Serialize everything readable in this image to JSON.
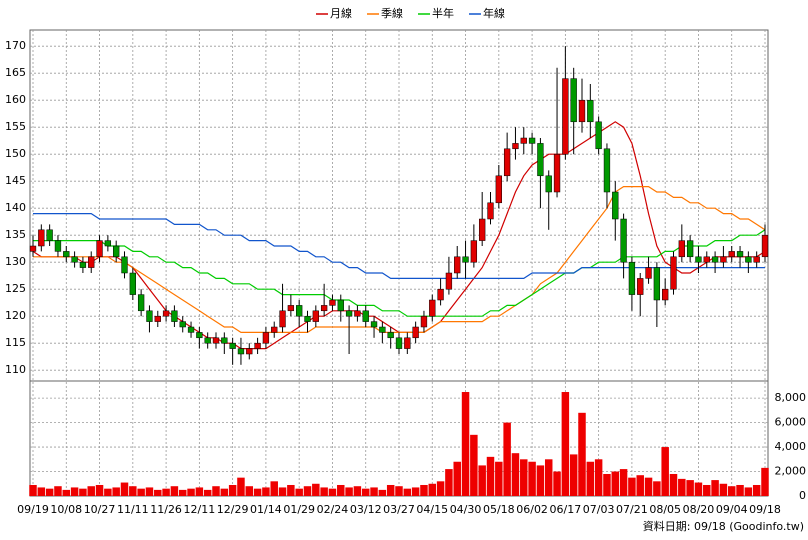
{
  "chart_data": {
    "type": "candlestick",
    "categories": [
      "09/19",
      null,
      null,
      null,
      "10/08",
      null,
      null,
      null,
      "10/27",
      null,
      null,
      null,
      "11/11",
      null,
      null,
      null,
      "11/26",
      null,
      null,
      null,
      "12/11",
      null,
      null,
      null,
      "12/29",
      null,
      null,
      null,
      "01/14",
      null,
      null,
      null,
      "01/29",
      null,
      null,
      null,
      "02/24",
      null,
      null,
      null,
      "03/12",
      null,
      null,
      null,
      "03/27",
      null,
      null,
      null,
      "04/15",
      null,
      null,
      null,
      "04/30",
      null,
      null,
      null,
      "05/18",
      null,
      null,
      null,
      "06/02",
      null,
      null,
      null,
      "06/17",
      null,
      null,
      null,
      "07/03",
      null,
      null,
      null,
      "07/21",
      null,
      null,
      null,
      "08/05",
      null,
      null,
      null,
      "08/20",
      null,
      null,
      null,
      "09/04",
      null,
      null,
      null,
      "09/18"
    ],
    "open": [
      132,
      133,
      136,
      134,
      132,
      131,
      130,
      129,
      131,
      134,
      133,
      131,
      128,
      124,
      121,
      119,
      120,
      121,
      119,
      118,
      117,
      116,
      115,
      116,
      115,
      114,
      113,
      114,
      115,
      117,
      118,
      121,
      122,
      120,
      119,
      121,
      122,
      123,
      121,
      120,
      121,
      119,
      118,
      117,
      116,
      114,
      116,
      118,
      120,
      123,
      125,
      128,
      131,
      130,
      134,
      138,
      141,
      146,
      151,
      152,
      153,
      152,
      146,
      143,
      150,
      164,
      156,
      160,
      156,
      151,
      143,
      138,
      130,
      124,
      127,
      129,
      123,
      125,
      131,
      134,
      131,
      130,
      131,
      130,
      131,
      132,
      131,
      130,
      131
    ],
    "high": [
      135,
      137,
      137,
      135,
      133,
      132,
      131,
      132,
      135,
      135,
      134,
      132,
      129,
      125,
      122,
      121,
      122,
      122,
      120,
      119,
      118,
      117,
      117,
      117,
      116,
      116,
      115,
      116,
      118,
      119,
      126,
      124,
      123,
      121,
      122,
      126,
      124,
      124,
      122,
      122,
      122,
      120,
      119,
      118,
      117,
      117,
      119,
      121,
      124,
      127,
      131,
      133,
      134,
      137,
      143,
      143,
      148,
      154,
      155,
      155,
      154,
      153,
      147,
      166,
      170,
      166,
      164,
      163,
      157,
      152,
      145,
      139,
      131,
      128,
      131,
      130,
      127,
      132,
      137,
      135,
      133,
      132,
      132,
      133,
      133,
      133,
      132,
      132,
      137
    ],
    "low": [
      131,
      132,
      133,
      131,
      130,
      129,
      128,
      128,
      130,
      132,
      130,
      127,
      123,
      120,
      117,
      118,
      119,
      118,
      117,
      116,
      114,
      114,
      114,
      113,
      111,
      111,
      112,
      113,
      114,
      116,
      117,
      120,
      118,
      117,
      118,
      120,
      121,
      119,
      113,
      119,
      118,
      116,
      115,
      114,
      113,
      113,
      115,
      117,
      119,
      122,
      124,
      127,
      127,
      129,
      133,
      137,
      140,
      145,
      149,
      150,
      150,
      140,
      136,
      142,
      149,
      150,
      154,
      153,
      150,
      140,
      134,
      127,
      121,
      120,
      126,
      118,
      122,
      124,
      130,
      130,
      128,
      129,
      128,
      129,
      130,
      129,
      128,
      129,
      130
    ],
    "close": [
      133,
      136,
      134,
      132,
      131,
      130,
      129,
      131,
      134,
      133,
      131,
      128,
      124,
      121,
      119,
      120,
      121,
      119,
      118,
      117,
      116,
      115,
      116,
      115,
      114,
      113,
      114,
      115,
      117,
      118,
      121,
      122,
      120,
      119,
      121,
      122,
      123,
      121,
      120,
      121,
      119,
      118,
      117,
      116,
      114,
      116,
      118,
      120,
      123,
      125,
      128,
      131,
      130,
      134,
      138,
      141,
      146,
      151,
      152,
      153,
      152,
      146,
      143,
      150,
      164,
      156,
      160,
      156,
      151,
      143,
      138,
      130,
      124,
      127,
      129,
      123,
      125,
      131,
      134,
      131,
      130,
      131,
      130,
      131,
      132,
      131,
      130,
      131,
      135
    ],
    "up_color": "#e00000",
    "down_color": "#009900",
    "ylim": [
      108,
      173
    ],
    "yticks": [
      110,
      115,
      120,
      125,
      130,
      135,
      140,
      145,
      150,
      155,
      160,
      165,
      170
    ],
    "grid": true,
    "series": [
      {
        "name": "月線",
        "color": "#d00000",
        "values": [
          132,
          131,
          131,
          131,
          131,
          131,
          130,
          130,
          131,
          131,
          131,
          130,
          129,
          127,
          125,
          123,
          121,
          120,
          119,
          118,
          117,
          116,
          116,
          115,
          115,
          114,
          114,
          114,
          114,
          115,
          116,
          117,
          118,
          119,
          120,
          120,
          121,
          121,
          121,
          121,
          120,
          120,
          119,
          118,
          117,
          117,
          117,
          117,
          118,
          119,
          121,
          123,
          125,
          127,
          129,
          132,
          135,
          139,
          143,
          146,
          148,
          149,
          150,
          150,
          150,
          151,
          152,
          153,
          154,
          155,
          156,
          155,
          152,
          146,
          139,
          133,
          130,
          129,
          128,
          128,
          129,
          130,
          131,
          131,
          131,
          131,
          131,
          131,
          132
        ]
      },
      {
        "name": "季線",
        "color": "#ff7700",
        "values": [
          131,
          131,
          131,
          131,
          131,
          131,
          131,
          131,
          131,
          131,
          130,
          130,
          129,
          128,
          127,
          126,
          125,
          124,
          123,
          122,
          121,
          120,
          119,
          118,
          118,
          117,
          117,
          117,
          117,
          117,
          117,
          117,
          117,
          117,
          118,
          118,
          118,
          118,
          118,
          118,
          118,
          118,
          117,
          117,
          117,
          117,
          117,
          117,
          118,
          119,
          119,
          119,
          119,
          119,
          119,
          120,
          120,
          121,
          122,
          123,
          124,
          126,
          127,
          128,
          130,
          132,
          134,
          136,
          138,
          140,
          143,
          144,
          144,
          144,
          144,
          143,
          143,
          142,
          142,
          141,
          141,
          140,
          140,
          139,
          139,
          138,
          138,
          137,
          136
        ]
      },
      {
        "name": "半年",
        "color": "#00cc00",
        "values": [
          134,
          134,
          134,
          134,
          134,
          134,
          134,
          134,
          134,
          133,
          133,
          133,
          132,
          132,
          131,
          131,
          130,
          130,
          129,
          129,
          128,
          128,
          127,
          127,
          126,
          126,
          126,
          125,
          125,
          125,
          124,
          124,
          124,
          124,
          124,
          124,
          123,
          123,
          123,
          122,
          122,
          122,
          121,
          121,
          121,
          120,
          120,
          120,
          120,
          120,
          120,
          120,
          120,
          120,
          120,
          121,
          121,
          122,
          122,
          123,
          124,
          125,
          126,
          127,
          128,
          128,
          129,
          129,
          130,
          130,
          130,
          131,
          131,
          131,
          131,
          131,
          132,
          132,
          133,
          133,
          133,
          133,
          134,
          134,
          134,
          135,
          135,
          135,
          136
        ]
      },
      {
        "name": "年線",
        "color": "#1155cc",
        "values": [
          139,
          139,
          139,
          139,
          139,
          139,
          139,
          139,
          138,
          138,
          138,
          138,
          138,
          138,
          138,
          138,
          138,
          137,
          137,
          137,
          137,
          136,
          136,
          135,
          135,
          135,
          134,
          134,
          134,
          133,
          133,
          133,
          132,
          132,
          131,
          131,
          130,
          130,
          129,
          129,
          128,
          128,
          128,
          127,
          127,
          127,
          127,
          127,
          127,
          127,
          127,
          127,
          127,
          127,
          127,
          127,
          127,
          127,
          127,
          127,
          128,
          128,
          128,
          128,
          128,
          128,
          129,
          129,
          129,
          129,
          129,
          129,
          129,
          129,
          129,
          129,
          129,
          129,
          129,
          129,
          129,
          129,
          129,
          129,
          129,
          129,
          129,
          129,
          129
        ]
      }
    ],
    "volume": {
      "color": "#ee0000",
      "ylim": [
        0,
        9400
      ],
      "yticks": [
        0,
        {
          "value": 2000,
          "label": "2,000"
        },
        {
          "value": 4000,
          "label": "4,000"
        },
        {
          "value": 6000,
          "label": "6,000"
        },
        {
          "value": 8000,
          "label": "8,000"
        }
      ],
      "values": [
        900,
        700,
        600,
        800,
        500,
        700,
        600,
        800,
        900,
        600,
        700,
        1100,
        800,
        600,
        700,
        500,
        600,
        800,
        500,
        600,
        700,
        500,
        800,
        600,
        900,
        1500,
        800,
        600,
        700,
        1200,
        700,
        900,
        600,
        800,
        1000,
        700,
        600,
        900,
        700,
        800,
        600,
        700,
        500,
        900,
        800,
        600,
        700,
        900,
        1000,
        1200,
        2200,
        2800,
        8500,
        5000,
        2500,
        3200,
        2800,
        6000,
        3500,
        3000,
        2800,
        2500,
        3000,
        2000,
        8500,
        3400,
        6800,
        2800,
        3000,
        1800,
        2000,
        2200,
        1500,
        1700,
        1500,
        1200,
        4000,
        1800,
        1400,
        1300,
        1100,
        900,
        1300,
        1000,
        800,
        900,
        700,
        900,
        2300
      ]
    },
    "footer": "資料日期: 09/18 (Goodinfo.tw)"
  }
}
